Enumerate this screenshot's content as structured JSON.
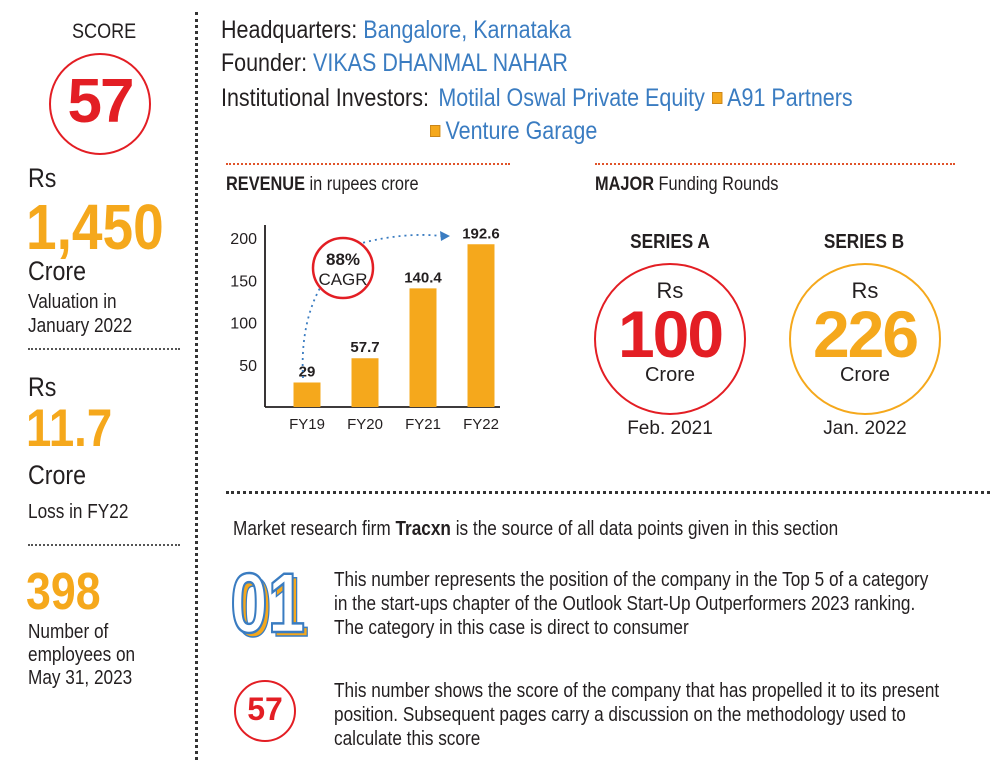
{
  "sidebar": {
    "score_label": "SCORE",
    "score_value": "57",
    "valuation": {
      "prefix": "Rs",
      "value": "1,450",
      "unit": "Crore",
      "desc_line1": "Valuation in",
      "desc_line2": "January 2022"
    },
    "loss": {
      "prefix": "Rs",
      "value": "11.7",
      "unit": "Crore",
      "desc": "Loss in FY22"
    },
    "employees": {
      "value": "398",
      "desc_line1": "Number of",
      "desc_line2": "employees on",
      "desc_line3": "May 31, 2023"
    }
  },
  "header": {
    "hq_label": "Headquarters:",
    "hq_value": "Bangalore, Karnataka",
    "founder_label": "Founder:",
    "founder_value": "VIKAS DHANMAL NAHAR",
    "investors_label": "Institutional Investors:",
    "investors": [
      "Motilal Oswal Private Equity",
      "A91 Partners",
      "Venture Garage"
    ]
  },
  "revenue": {
    "title_bold": "REVENUE",
    "title_rest": " in rupees crore",
    "cagr_value": "88%",
    "cagr_label": "CAGR"
  },
  "chart_data": {
    "type": "bar",
    "title": "REVENUE in rupees crore",
    "categories": [
      "FY19",
      "FY20",
      "FY21",
      "FY22"
    ],
    "values": [
      29,
      57.7,
      140.4,
      192.6
    ],
    "value_labels": [
      "29",
      "57.7",
      "140.4",
      "192.6"
    ],
    "y_ticks": [
      50,
      100,
      150,
      200
    ],
    "ylim": [
      0,
      200
    ],
    "grid": false,
    "annotation": "88% CAGR",
    "colors": {
      "bar": "#f5a81c",
      "annotation": "#e31e24",
      "arrow": "#3a7cc1"
    }
  },
  "funding": {
    "title_bold": "MAJOR",
    "title_rest": " Funding Rounds",
    "rounds": [
      {
        "name": "SERIES A",
        "prefix": "Rs",
        "amount": "100",
        "unit": "Crore",
        "date": "Feb. 2021",
        "color": "#e31e24"
      },
      {
        "name": "SERIES B",
        "prefix": "Rs",
        "amount": "226",
        "unit": "Crore",
        "date": "Jan. 2022",
        "color": "#f5a81c"
      }
    ]
  },
  "footer": {
    "source_pre": "Market research firm ",
    "source_bold": "Tracxn",
    "source_post": " is the source of all data points given in this section",
    "rank_number": "01",
    "rank_text_1": "This number represents the position of the company in the Top 5 of a category",
    "rank_text_2": "in the start-ups chapter of the Outlook Start-Up Outperformers 2023 ranking.",
    "rank_text_3": "The category in this case is direct to consumer",
    "score_number": "57",
    "score_text_1": "This number shows the score of the company that has propelled it to its present",
    "score_text_2": "position. Subsequent pages carry a discussion on the methodology used to",
    "score_text_3": "calculate this score"
  }
}
